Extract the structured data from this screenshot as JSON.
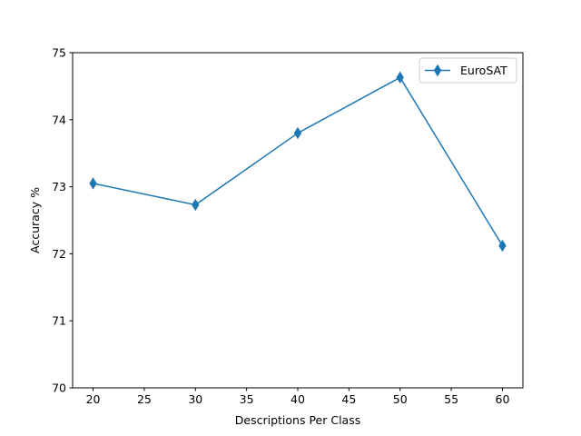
{
  "chart_data": {
    "type": "line",
    "xlabel": "Descriptions Per Class",
    "ylabel": "Accuracy %",
    "xlim": [
      18,
      62
    ],
    "ylim": [
      70,
      75
    ],
    "x_ticks": [
      20,
      25,
      30,
      35,
      40,
      45,
      50,
      55,
      60
    ],
    "y_ticks": [
      70,
      71,
      72,
      73,
      74,
      75
    ],
    "grid": false,
    "legend_position": "top-right",
    "series": [
      {
        "name": "EuroSAT",
        "color": "#1f77b4",
        "marker": "diamond",
        "x": [
          20,
          30,
          40,
          50,
          60
        ],
        "y": [
          73.05,
          72.73,
          73.8,
          74.63,
          72.12
        ]
      }
    ]
  }
}
